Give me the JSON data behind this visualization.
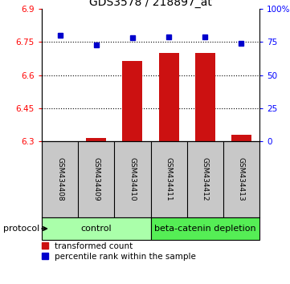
{
  "title": "GDS3578 / 218897_at",
  "samples": [
    "GSM434408",
    "GSM434409",
    "GSM434410",
    "GSM434411",
    "GSM434412",
    "GSM434413"
  ],
  "red_values": [
    6.3,
    6.315,
    6.665,
    6.7,
    6.7,
    6.33
  ],
  "blue_values": [
    80,
    73,
    78,
    79,
    79,
    74
  ],
  "ylim_left": [
    6.3,
    6.9
  ],
  "ylim_right": [
    0,
    100
  ],
  "yticks_left": [
    6.3,
    6.45,
    6.6,
    6.75,
    6.9
  ],
  "yticks_right": [
    0,
    25,
    50,
    75,
    100
  ],
  "ytick_labels_right": [
    "0",
    "25",
    "50",
    "75",
    "100%"
  ],
  "grid_lines": [
    6.45,
    6.6,
    6.75
  ],
  "bar_color": "#cc1111",
  "dot_color": "#0000cc",
  "bar_width": 0.55,
  "control_label": "control",
  "treatment_label": "beta-catenin depletion",
  "protocol_label": "protocol",
  "legend_red": "transformed count",
  "legend_blue": "percentile rank within the sample",
  "control_color": "#aaffaa",
  "treatment_color": "#55ee55",
  "header_bg": "#c8c8c8",
  "n_control": 3,
  "n_treatment": 3
}
